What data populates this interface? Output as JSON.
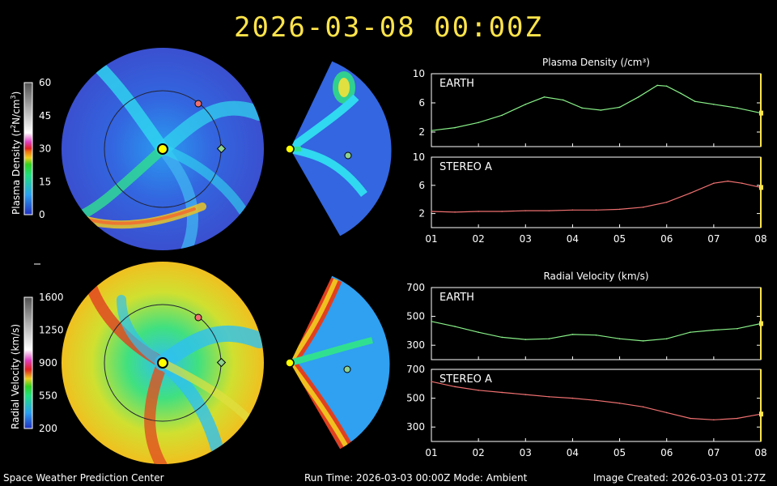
{
  "header": {
    "datetime": "2026-03-08  00:00Z"
  },
  "colorbars": {
    "density": {
      "label_main": "Plasma Density (r",
      "label_sup": "2",
      "label_rest": "N/cm",
      "label_sup2": "3",
      "label_end": ")",
      "ticks": [
        "60",
        "45",
        "30",
        "15",
        "0"
      ]
    },
    "velocity": {
      "label": "Radial Velocity (km/s)",
      "ticks": [
        "1600",
        "1250",
        "900",
        "550",
        "200"
      ]
    }
  },
  "markers": {
    "earth_color": "#8fd18f",
    "stereo_a_color": "#f07070",
    "sun_color": "#ffff00"
  },
  "chart_data": [
    {
      "type": "line",
      "title": "Plasma Density (/cm³)",
      "panel": "EARTH",
      "x": [
        1,
        1.5,
        2,
        2.5,
        3,
        3.4,
        3.8,
        4.2,
        4.6,
        5,
        5.4,
        5.8,
        6,
        6.3,
        6.6,
        7,
        7.5,
        8
      ],
      "y": [
        2.2,
        2.6,
        3.3,
        4.3,
        5.8,
        6.8,
        6.4,
        5.3,
        5.0,
        5.4,
        6.8,
        8.4,
        8.3,
        7.3,
        6.2,
        5.8,
        5.3,
        4.6
      ],
      "xlim": [
        1,
        8
      ],
      "ylim": [
        0,
        10
      ],
      "yticks": [
        "2",
        "6",
        "10"
      ],
      "series": [
        {
          "name": "EARTH",
          "color": "#88f088"
        }
      ]
    },
    {
      "type": "line",
      "panel": "STEREO A",
      "x": [
        1,
        1.5,
        2,
        2.5,
        3,
        3.5,
        4,
        4.5,
        5,
        5.5,
        6,
        6.5,
        7,
        7.3,
        7.6,
        8
      ],
      "y": [
        2.3,
        2.2,
        2.3,
        2.3,
        2.4,
        2.4,
        2.5,
        2.5,
        2.6,
        2.9,
        3.6,
        4.9,
        6.3,
        6.6,
        6.3,
        5.7
      ],
      "xlim": [
        1,
        8
      ],
      "ylim": [
        0,
        10
      ],
      "yticks": [
        "2",
        "6",
        "10"
      ],
      "series": [
        {
          "name": "STEREO A",
          "color": "#f07070"
        }
      ]
    },
    {
      "type": "line",
      "title": "Radial Velocity (km/s)",
      "panel": "EARTH",
      "x": [
        1,
        1.5,
        2,
        2.5,
        3,
        3.5,
        4,
        4.5,
        5,
        5.5,
        6,
        6.5,
        7,
        7.5,
        8
      ],
      "y": [
        465,
        430,
        390,
        355,
        340,
        345,
        375,
        370,
        345,
        330,
        345,
        390,
        405,
        415,
        450
      ],
      "xlim": [
        1,
        8
      ],
      "ylim": [
        200,
        700
      ],
      "yticks": [
        "300",
        "500",
        "700"
      ],
      "series": [
        {
          "name": "EARTH",
          "color": "#88f088"
        }
      ]
    },
    {
      "type": "line",
      "panel": "STEREO A",
      "x": [
        1,
        1.5,
        2,
        2.5,
        3,
        3.5,
        4,
        4.5,
        5,
        5.5,
        6,
        6.5,
        7,
        7.5,
        8
      ],
      "y": [
        615,
        580,
        555,
        540,
        525,
        510,
        500,
        485,
        465,
        440,
        400,
        360,
        350,
        360,
        390
      ],
      "xlim": [
        1,
        8
      ],
      "ylim": [
        200,
        700
      ],
      "yticks": [
        "300",
        "500",
        "700"
      ],
      "series": [
        {
          "name": "STEREO A",
          "color": "#f07070"
        }
      ]
    }
  ],
  "x_ticks": [
    "01",
    "02",
    "03",
    "04",
    "05",
    "06",
    "07",
    "08"
  ],
  "footer": {
    "left": "Space Weather Prediction Center",
    "middle": "Run Time: 2026-03-03 00:00Z  Mode: Ambient",
    "right": "Image Created: 2026-03-03 01:27Z"
  }
}
